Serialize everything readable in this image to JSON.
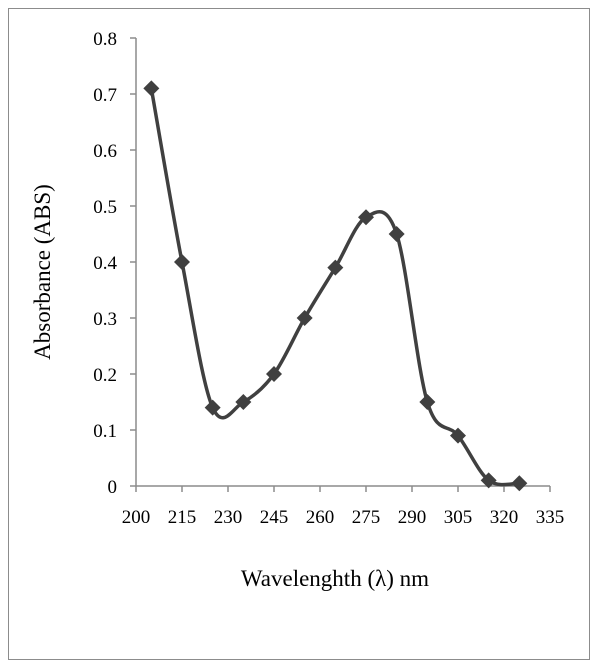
{
  "chart_data": {
    "type": "line",
    "title": "",
    "xlabel": "Wavelenghth (λ) nm",
    "ylabel": "Absorbance (ABS)",
    "xlim": [
      200,
      335
    ],
    "ylim": [
      0,
      0.8
    ],
    "x_ticks": [
      "200",
      "215",
      "230",
      "245",
      "260",
      "275",
      "290",
      "305",
      "320",
      "335"
    ],
    "y_ticks": [
      "0",
      "0.1",
      "0.2",
      "0.3",
      "0.4",
      "0.5",
      "0.6",
      "0.7",
      "0.8"
    ],
    "grid": false,
    "legend": "none",
    "smooth": true,
    "marker": "diamond",
    "series": [
      {
        "color": "#404040",
        "x": [
          205,
          215,
          225,
          235,
          245,
          255,
          265,
          275,
          285,
          295,
          305,
          315,
          325
        ],
        "y": [
          0.71,
          0.4,
          0.14,
          0.15,
          0.2,
          0.3,
          0.39,
          0.48,
          0.45,
          0.15,
          0.09,
          0.01,
          0.005
        ]
      }
    ]
  }
}
